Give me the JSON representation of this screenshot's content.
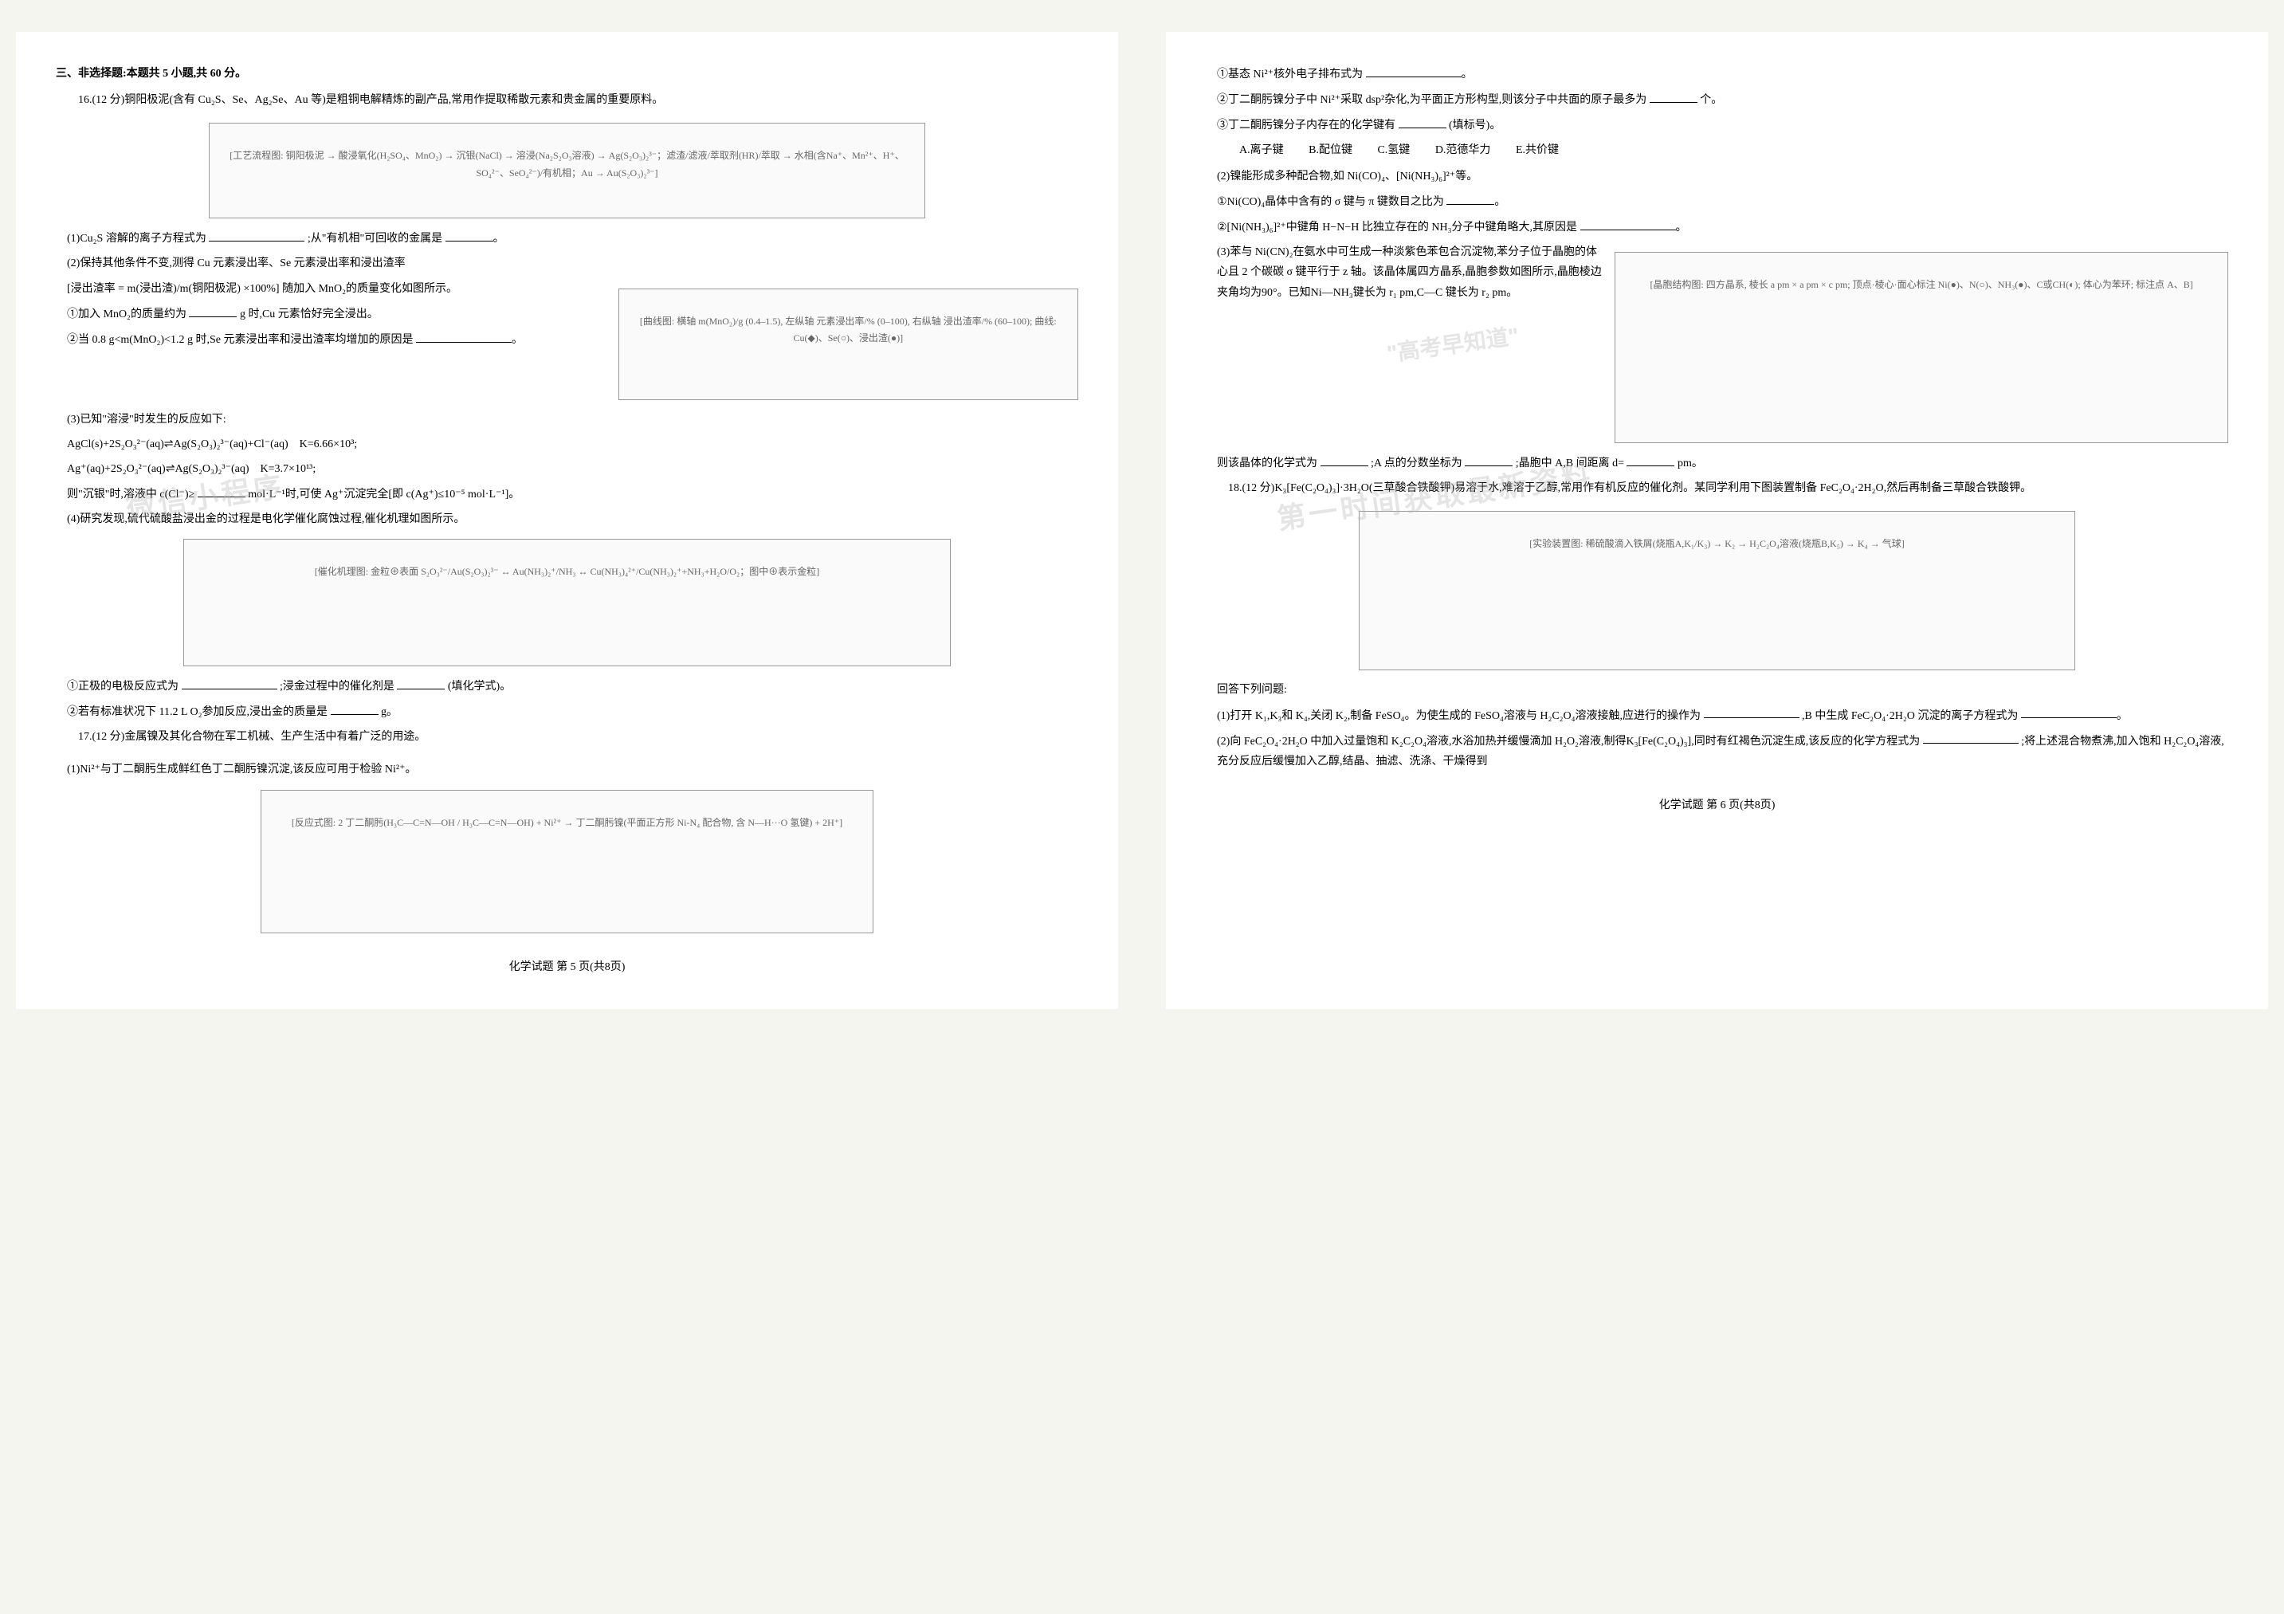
{
  "section_header": "三、非选择题:本题共 5 小题,共 60 分。",
  "q16": {
    "stem": "16.(12 分)铜阳极泥(含有 Cu₂S、Se、Ag₂Se、Au 等)是粗铜电解精炼的副产品,常用作提取稀散元素和贵金属的重要原料。",
    "flowchart_label": "[工艺流程图: 铜阳极泥 → 酸浸氧化(H₂SO₄、MnO₂) → 沉银(NaCl) → 溶浸(Na₂S₂O₃溶液) → Ag(S₂O₃)₂³⁻；滤渣/滤液/萃取剂(HR)/萃取 → 水相(含Na⁺、Mn²⁺、H⁺、SO₄²⁻、SeO₄²⁻)/有机相；Au → Au(S₂O₃)₂³⁻]",
    "p1": "(1)Cu₂S 溶解的离子方程式为",
    "p1b": ";从\"有机相\"可回收的金属是",
    "p2": "(2)保持其他条件不变,测得 Cu 元素浸出率、Se 元素浸出率和浸出渣率",
    "p2_formula": "[浸出渣率 = m(浸出渣)/m(铜阳极泥) ×100%] 随加入 MnO₂的质量变化如图所示。",
    "chart_label": "[曲线图: 横轴 m(MnO₂)/g (0.4–1.5), 左纵轴 元素浸出率/% (0–100), 右纵轴 浸出渣率/% (60–100); 曲线: Cu(◆)、Se(○)、浸出渣(●)]",
    "p2_1": "①加入 MnO₂的质量约为",
    "p2_1b": "g 时,Cu 元素恰好完全浸出。",
    "p2_2": "②当 0.8 g<m(MnO₂)<1.2 g 时,Se 元素浸出率和浸出渣率均增加的原因是",
    "p3": "(3)已知\"溶浸\"时发生的反应如下:",
    "p3_eq1": "AgCl(s)+2S₂O₃²⁻(aq)⇌Ag(S₂O₃)₂³⁻(aq)+Cl⁻(aq)　K=6.66×10³;",
    "p3_eq2": "Ag⁺(aq)+2S₂O₃²⁻(aq)⇌Ag(S₂O₃)₂³⁻(aq)　K=3.7×10¹³;",
    "p3_q": "则\"沉银\"时,溶液中 c(Cl⁻)≥",
    "p3_qb": "mol·L⁻¹时,可使 Ag⁺沉淀完全[即 c(Ag⁺)≤10⁻⁵ mol·L⁻¹]。",
    "p4": "(4)研究发现,硫代硫酸盐浸出金的过程是电化学催化腐蚀过程,催化机理如图所示。",
    "mechanism_label": "[催化机理图: 金粒⊕表面 S₂O₃²⁻/Au(S₂O₃)₂³⁻ ↔ Au(NH₃)₂⁺/NH₃ ↔ Cu(NH₃)₄²⁺/Cu(NH₃)₂⁺+NH₃+H₂O/O₂；图中⊕表示金粒]",
    "p4_1": "①正极的电极反应式为",
    "p4_1b": ";浸金过程中的催化剂是",
    "p4_1c": "(填化学式)。",
    "p4_2": "②若有标准状况下 11.2 L O₂参加反应,浸出金的质量是",
    "p4_2b": "g。"
  },
  "q17": {
    "stem": "17.(12 分)金属镍及其化合物在军工机械、生产生活中有着广泛的用途。",
    "p1": "(1)Ni²⁺与丁二酮肟生成鲜红色丁二酮肟镍沉淀,该反应可用于检验 Ni²⁺。",
    "molecule_label": "[反应式图: 2 丁二酮肟(H₃C—C=N—OH / H₃C—C=N—OH) + Ni²⁺ → 丁二酮肟镍(平面正方形 Ni-N₄ 配合物, 含 N—H···O 氢键) + 2H⁺]",
    "p1_1": "①基态 Ni²⁺核外电子排布式为",
    "p1_2": "②丁二酮肟镍分子中 Ni²⁺采取 dsp²杂化,为平面正方形构型,则该分子中共面的原子最多为",
    "p1_2b": "个。",
    "p1_3": "③丁二酮肟镍分子内存在的化学键有",
    "p1_3b": "(填标号)。",
    "choices": {
      "A": "A.离子键",
      "B": "B.配位键",
      "C": "C.氢键",
      "D": "D.范德华力",
      "E": "E.共价键"
    },
    "p2": "(2)镍能形成多种配合物,如 Ni(CO)₄、[Ni(NH₃)₆]²⁺等。",
    "p2_1": "①Ni(CO)₄晶体中含有的 σ 键与 π 键数目之比为",
    "p2_2": "②[Ni(NH₃)₆]²⁺中键角 H−N−H 比独立存在的 NH₃分子中键角略大,其原因是",
    "p3": "(3)苯与 Ni(CN)₂在氨水中可生成一种淡紫色苯包合沉淀物,苯分子位于晶胞的体心且 2 个碳碳 σ 键平行于 z 轴。该晶体属四方晶系,晶胞参数如图所示,晶胞棱边夹角均为90°。已知Ni—NH₃键长为 r₁ pm,C—C 键长为 r₂ pm。",
    "crystal_label": "[晶胞结构图: 四方晶系, 棱长 a pm × a pm × c pm; 顶点·棱心·面心标注 Ni(●)、N(○)、NH₃(●)、C或CH(◐); 体心为苯环; 标注点 A、B]",
    "p3_q1": "则该晶体的化学式为",
    "p3_q2": ";A 点的分数坐标为",
    "p3_q3": ";晶胞中 A,B 间距离 d=",
    "p3_q3b": "pm。"
  },
  "q18": {
    "stem": "18.(12 分)K₃[Fe(C₂O₄)₃]·3H₂O(三草酸合铁酸钾)易溶于水,难溶于乙醇,常用作有机反应的催化剂。某同学利用下图装置制备 FeC₂O₄·2H₂O,然后再制备三草酸合铁酸钾。",
    "apparatus_label": "[实验装置图: 稀硫酸滴入铁屑(烧瓶A,K₁/K₃) → K₂ → H₂C₂O₄溶液(烧瓶B,K₅) → K₄ → 气球]",
    "intro": "回答下列问题:",
    "p1": "(1)打开 K₁,K₃和 K₄,关闭 K₂,制备 FeSO₄。为使生成的 FeSO₄溶液与 H₂C₂O₄溶液接触,应进行的操作为",
    "p1b": ",B 中生成 FeC₂O₄·2H₂O 沉淀的离子方程式为",
    "p2": "(2)向 FeC₂O₄·2H₂O 中加入过量饱和 K₂C₂O₄溶液,水浴加热并缓慢滴加 H₂O₂溶液,制得K₃[Fe(C₂O₄)₃],同时有红褐色沉淀生成,该反应的化学方程式为",
    "p2b": ";将上述混合物煮沸,加入饱和 H₂C₂O₄溶液,充分反应后缓慢加入乙醇,结晶、抽滤、洗涤、干燥得到"
  },
  "footer5": "化学试题 第 5 页(共8页)",
  "footer6": "化学试题 第 6 页(共8页)",
  "watermark1": "微信小程序",
  "watermark2": "\"高考早知道\"",
  "watermark3": "第一时间获取最新资料"
}
